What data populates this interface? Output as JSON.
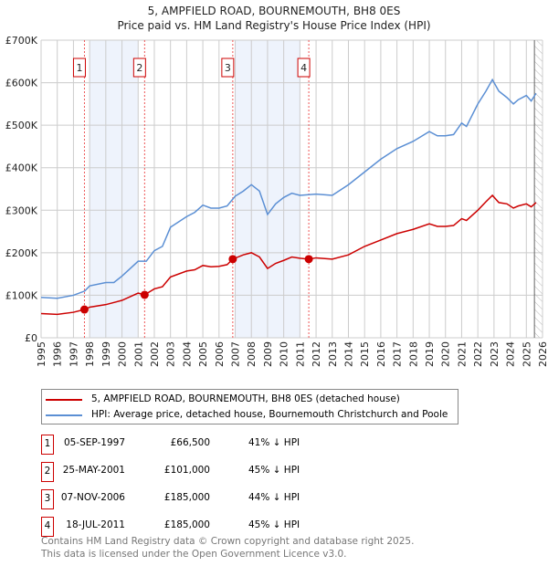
{
  "chart_data": {
    "type": "line",
    "title": "5, AMPFIELD ROAD, BOURNEMOUTH, BH8 0ES",
    "subtitle": "Price paid vs. HM Land Registry's House Price Index (HPI)",
    "xlim": [
      1995,
      2026
    ],
    "ylim": [
      0,
      700000
    ],
    "x_ticks": [
      "1995",
      "1996",
      "1997",
      "1998",
      "1999",
      "2000",
      "2001",
      "2002",
      "2003",
      "2004",
      "2005",
      "2006",
      "2007",
      "2008",
      "2009",
      "2010",
      "2011",
      "2012",
      "2013",
      "2014",
      "2015",
      "2016",
      "2017",
      "2018",
      "2019",
      "2020",
      "2021",
      "2022",
      "2023",
      "2024",
      "2025",
      "2026"
    ],
    "y_ticks": [
      {
        "v": 0,
        "l": "£0"
      },
      {
        "v": 100000,
        "l": "£100K"
      },
      {
        "v": 200000,
        "l": "£200K"
      },
      {
        "v": 300000,
        "l": "£300K"
      },
      {
        "v": 400000,
        "l": "£400K"
      },
      {
        "v": 500000,
        "l": "£500K"
      },
      {
        "v": 600000,
        "l": "£600K"
      },
      {
        "v": 700000,
        "l": "£700K"
      }
    ],
    "grid": true,
    "shaded_ranges": [
      [
        1998,
        2001
      ],
      [
        2007,
        2011
      ]
    ],
    "forecast_hatch_from": 2025.5,
    "series": [
      {
        "name": "5, AMPFIELD ROAD, BOURNEMOUTH, BH8 0ES (detached house)",
        "color": "#cc0000",
        "points": [
          [
            1995,
            57
          ],
          [
            1996,
            55
          ],
          [
            1997,
            60
          ],
          [
            1997.68,
            66.5
          ],
          [
            1998,
            72
          ],
          [
            1999,
            78
          ],
          [
            2000,
            88
          ],
          [
            2001,
            105
          ],
          [
            2001.4,
            101
          ],
          [
            2002,
            115
          ],
          [
            2002.5,
            120
          ],
          [
            2003,
            143
          ],
          [
            2004,
            157
          ],
          [
            2004.5,
            160
          ],
          [
            2005,
            170
          ],
          [
            2005.5,
            167
          ],
          [
            2006,
            168
          ],
          [
            2006.5,
            172
          ],
          [
            2006.85,
            185
          ],
          [
            2007.5,
            195
          ],
          [
            2008,
            200
          ],
          [
            2008.5,
            190
          ],
          [
            2009,
            163
          ],
          [
            2009.5,
            175
          ],
          [
            2010,
            182
          ],
          [
            2010.5,
            190
          ],
          [
            2011,
            187
          ],
          [
            2011.55,
            185
          ],
          [
            2012,
            188
          ],
          [
            2013,
            185
          ],
          [
            2014,
            195
          ],
          [
            2015,
            215
          ],
          [
            2016,
            230
          ],
          [
            2017,
            245
          ],
          [
            2018,
            255
          ],
          [
            2019,
            268
          ],
          [
            2019.5,
            262
          ],
          [
            2020,
            262
          ],
          [
            2020.5,
            264
          ],
          [
            2021,
            280
          ],
          [
            2021.3,
            276
          ],
          [
            2022,
            300
          ],
          [
            2022.5,
            320
          ],
          [
            2022.9,
            335
          ],
          [
            2023.3,
            318
          ],
          [
            2023.8,
            315
          ],
          [
            2024.2,
            305
          ],
          [
            2024.5,
            310
          ],
          [
            2025,
            315
          ],
          [
            2025.3,
            308
          ],
          [
            2025.6,
            318
          ]
        ]
      },
      {
        "name": "HPI: Average price, detached house, Bournemouth Christchurch and Poole",
        "color": "#5b8fd4",
        "points": [
          [
            1995,
            95
          ],
          [
            1996,
            93
          ],
          [
            1997,
            100
          ],
          [
            1997.7,
            110
          ],
          [
            1998,
            122
          ],
          [
            1999,
            130
          ],
          [
            1999.5,
            130
          ],
          [
            2000,
            145
          ],
          [
            2001,
            180
          ],
          [
            2001.5,
            180
          ],
          [
            2002,
            205
          ],
          [
            2002.5,
            215
          ],
          [
            2003,
            260
          ],
          [
            2004,
            285
          ],
          [
            2004.5,
            295
          ],
          [
            2005,
            312
          ],
          [
            2005.5,
            305
          ],
          [
            2006,
            305
          ],
          [
            2006.5,
            310
          ],
          [
            2007,
            333
          ],
          [
            2007.5,
            345
          ],
          [
            2008,
            360
          ],
          [
            2008.5,
            345
          ],
          [
            2009,
            290
          ],
          [
            2009.5,
            315
          ],
          [
            2010,
            330
          ],
          [
            2010.5,
            340
          ],
          [
            2011,
            335
          ],
          [
            2012,
            338
          ],
          [
            2013,
            335
          ],
          [
            2014,
            360
          ],
          [
            2015,
            390
          ],
          [
            2016,
            420
          ],
          [
            2017,
            445
          ],
          [
            2018,
            462
          ],
          [
            2019,
            485
          ],
          [
            2019.5,
            475
          ],
          [
            2020,
            475
          ],
          [
            2020.5,
            478
          ],
          [
            2021,
            505
          ],
          [
            2021.3,
            497
          ],
          [
            2022,
            550
          ],
          [
            2022.5,
            580
          ],
          [
            2022.9,
            607
          ],
          [
            2023.3,
            580
          ],
          [
            2023.8,
            565
          ],
          [
            2024.2,
            550
          ],
          [
            2024.5,
            560
          ],
          [
            2025,
            570
          ],
          [
            2025.3,
            557
          ],
          [
            2025.6,
            575
          ]
        ]
      }
    ],
    "sales": [
      {
        "id": "1",
        "x": 1997.68,
        "date": "05-SEP-1997",
        "price": "£66,500",
        "value": 66500,
        "pct": "41% ↓ HPI"
      },
      {
        "id": "2",
        "x": 2001.4,
        "date": "25-MAY-2001",
        "price": "£101,000",
        "value": 101000,
        "pct": "45% ↓ HPI"
      },
      {
        "id": "3",
        "x": 2006.85,
        "date": "07-NOV-2006",
        "price": "£185,000",
        "value": 185000,
        "pct": "44% ↓ HPI"
      },
      {
        "id": "4",
        "x": 2011.55,
        "date": "18-JUL-2011",
        "price": "£185,000",
        "value": 185000,
        "pct": "45% ↓ HPI"
      }
    ]
  },
  "footer": {
    "line1": "Contains HM Land Registry data © Crown copyright and database right 2025.",
    "line2": "This data is licensed under the Open Government Licence v3.0."
  }
}
